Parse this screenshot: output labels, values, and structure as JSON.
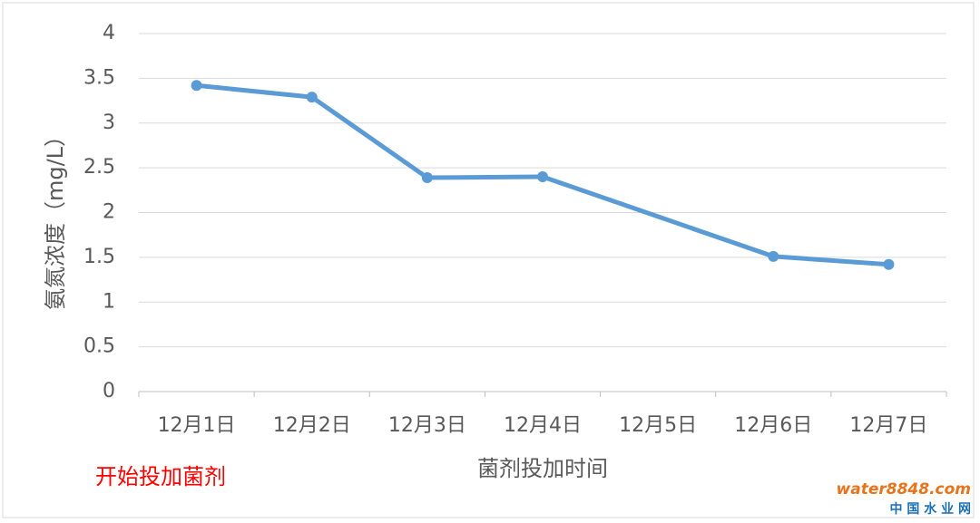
{
  "chart_data": {
    "type": "line",
    "categories": [
      "12月1日",
      "12月2日",
      "12月3日",
      "12月4日",
      "12月5日",
      "12月6日",
      "12月7日"
    ],
    "series": [
      {
        "name": "氨氮浓度",
        "color": "#5b9bd5",
        "values": [
          3.42,
          3.29,
          2.39,
          2.4,
          null,
          1.51,
          1.42
        ]
      }
    ],
    "connect_gaps": true,
    "ylim": [
      0,
      4
    ],
    "yticks": [
      0,
      0.5,
      1,
      1.5,
      2,
      2.5,
      3,
      3.5,
      4
    ],
    "grid": true,
    "y_label": "氨氮浓度（mg/L）",
    "x_label": "菌剂投加时间",
    "annotation": "开始投加菌剂",
    "watermark": [
      "water8848.com",
      "中 国 水 业 网"
    ]
  }
}
